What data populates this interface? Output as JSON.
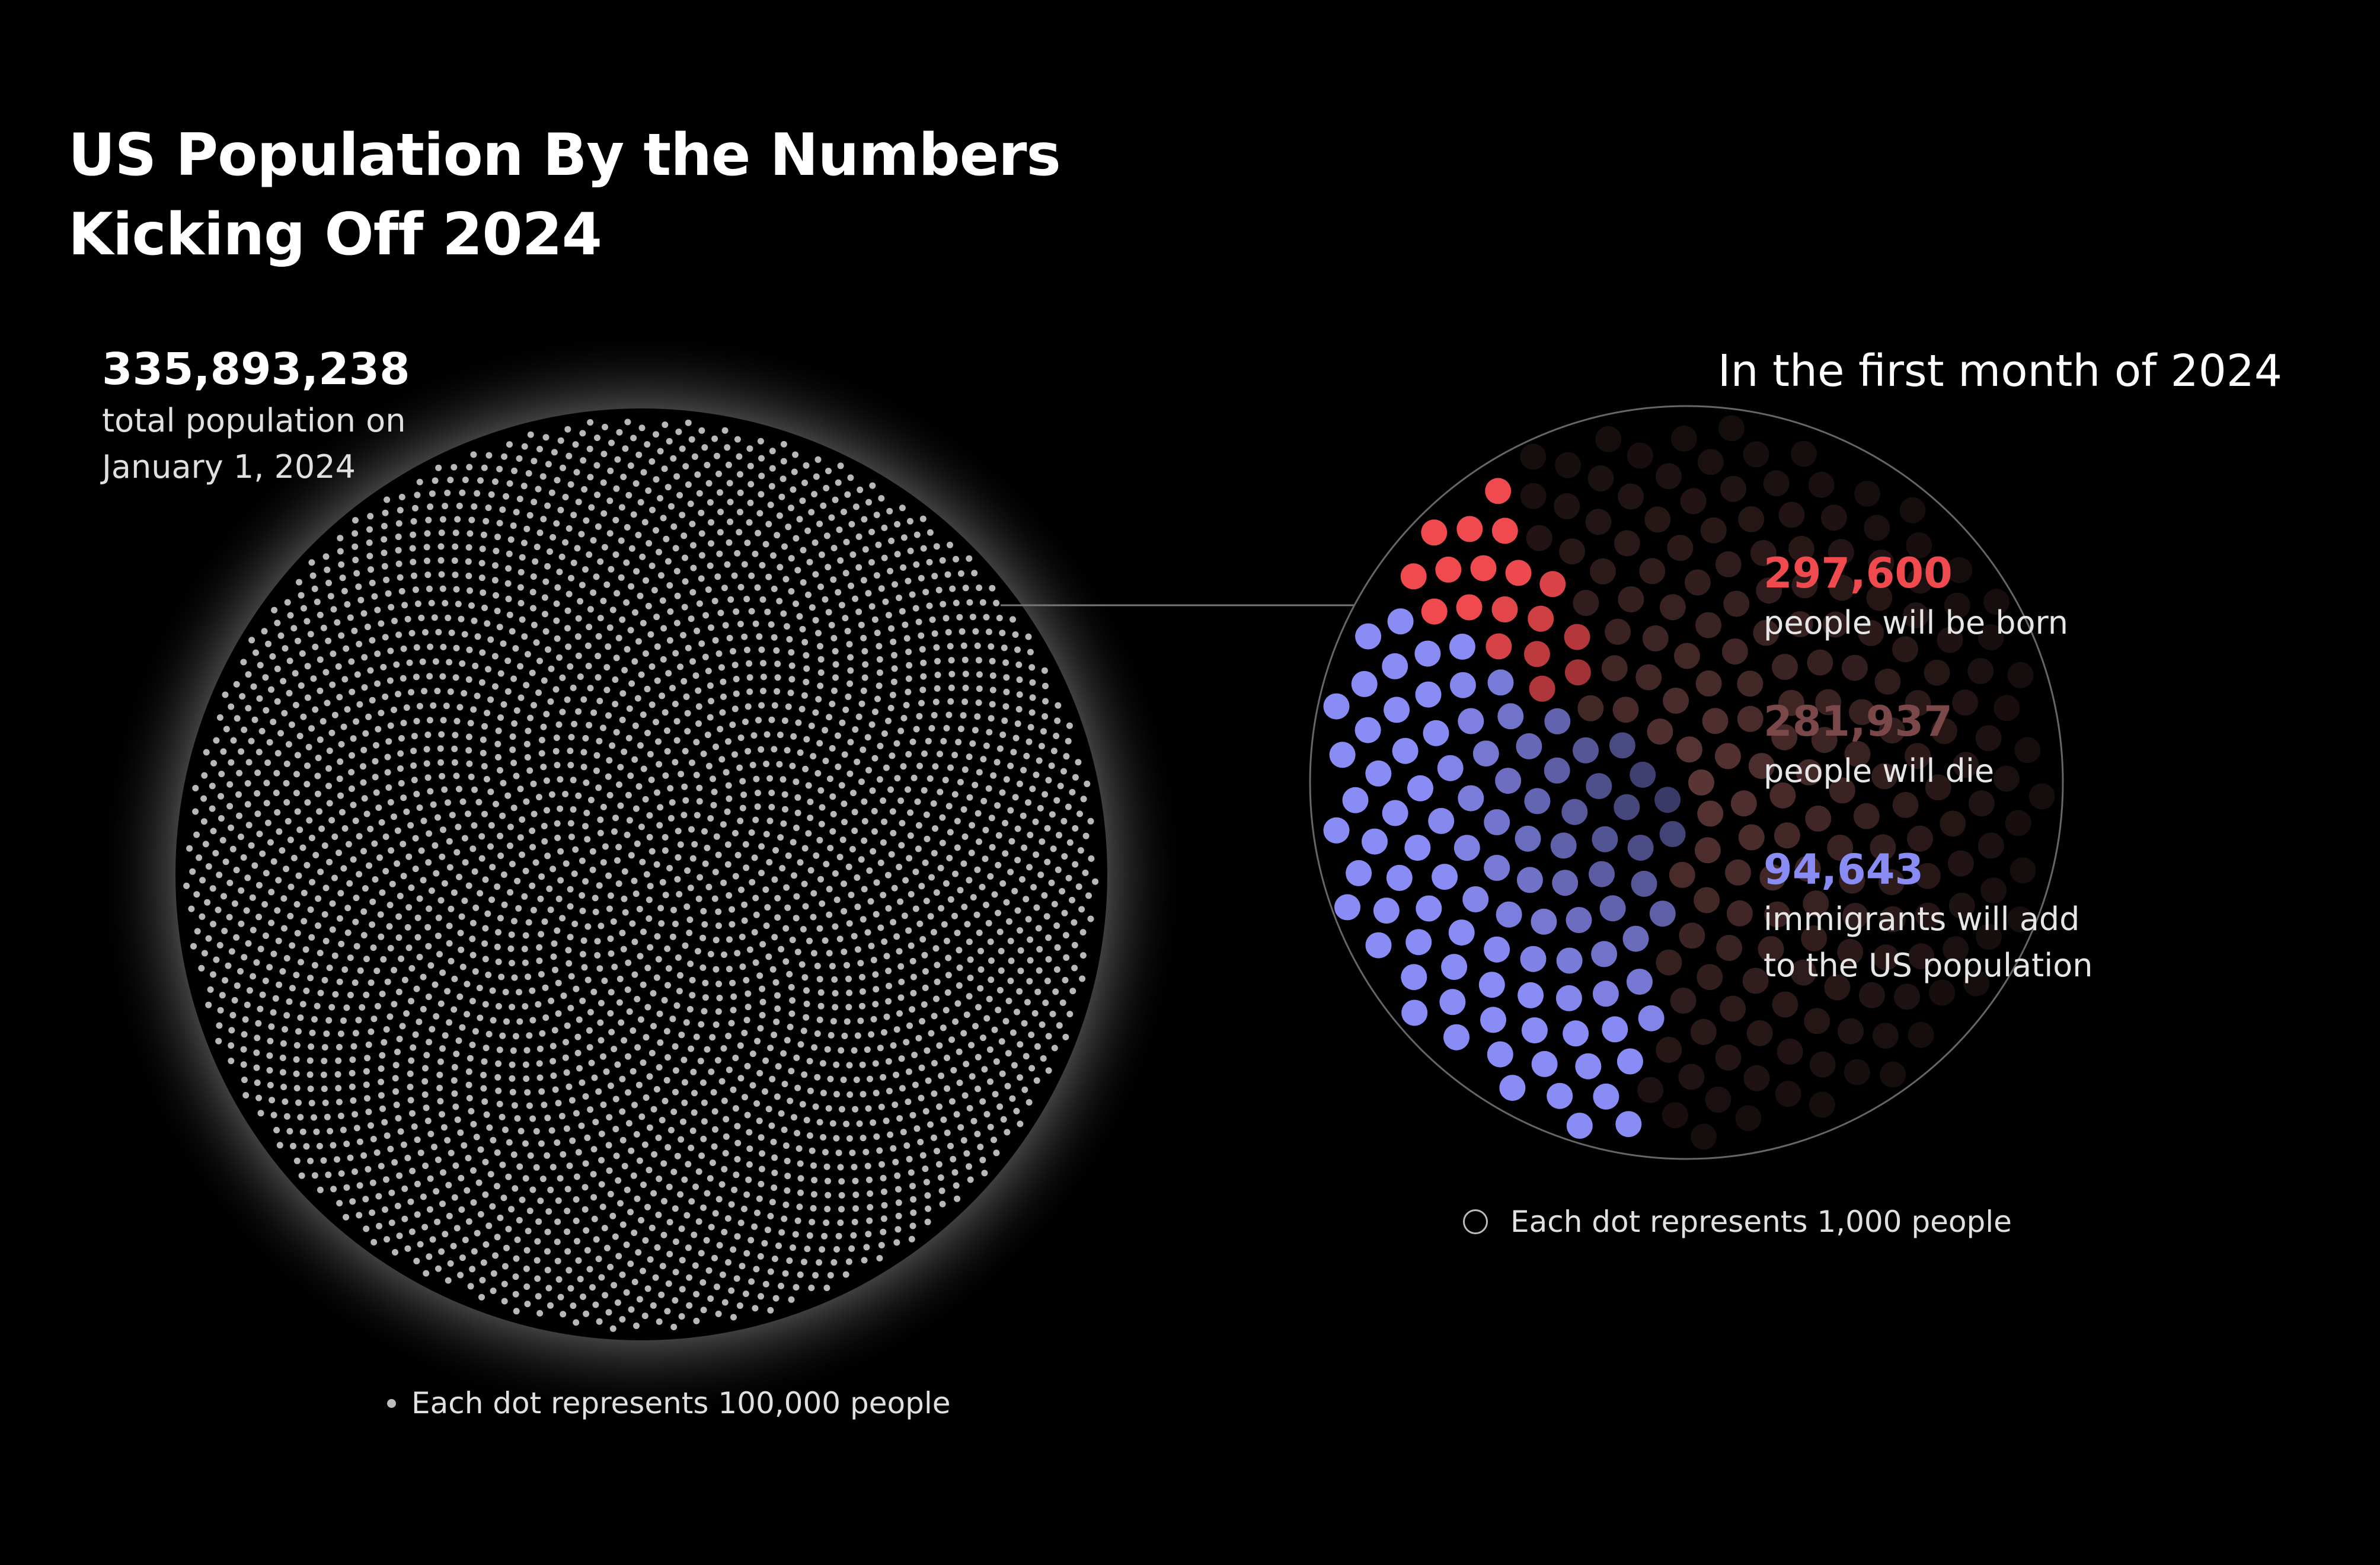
{
  "title": {
    "line1": "US Population By the Numbers",
    "line2": "Kicking Off 2024"
  },
  "total": {
    "value": "335,893,238",
    "label_line1": "total population on",
    "label_line2": "January 1, 2024"
  },
  "right_title": "In the first month of 2024",
  "legend_left": "Each dot represents 100,000 people",
  "legend_right": "Each dot represents 1,000 people",
  "colors": {
    "born": "#f04a4f",
    "die": "#7a4848",
    "immigrants": "#8a8cf6",
    "pop_dot": "#b8b8b8"
  },
  "stats": {
    "born": {
      "value": "297,600",
      "label": "people will be born"
    },
    "die": {
      "value": "281,937",
      "label": "people will die"
    },
    "immigrants": {
      "value": "94,643",
      "label_line1": "immigrants will add",
      "label_line2": "to the US population"
    }
  },
  "chart_data": {
    "type": "dot-matrix",
    "total_population": 335893238,
    "population_dot_unit": 100000,
    "monthly_dot_unit": 1000,
    "series": [
      {
        "name": "people will be born",
        "value": 297600
      },
      {
        "name": "people will die",
        "value": 281937
      },
      {
        "name": "immigrants will add to the US population",
        "value": 94643
      }
    ]
  }
}
